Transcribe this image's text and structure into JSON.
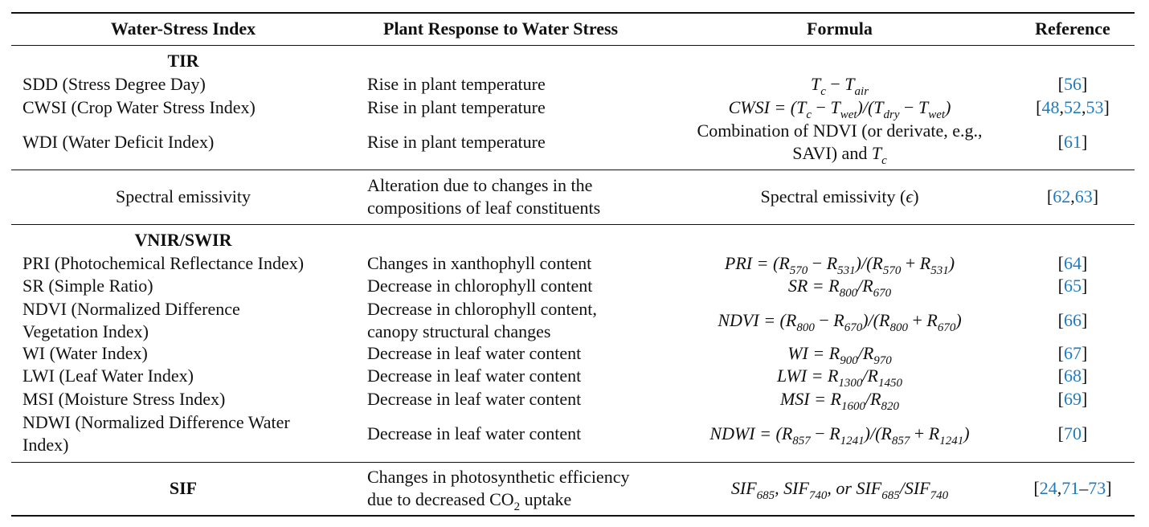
{
  "headers": {
    "index": "Water-Stress Index",
    "response": "Plant Response to Water Stress",
    "formula": "Formula",
    "reference": "Reference"
  },
  "sections": {
    "tir": "TIR",
    "vnir": "VNIR/SWIR",
    "sif": "SIF"
  },
  "rows": {
    "sdd": {
      "index": "SDD (Stress Degree Day)",
      "response": "Rise in plant temperature",
      "formula": {
        "a": "T",
        "a_sub": "c",
        "op": " − ",
        "b": "T",
        "b_sub": "air"
      },
      "refs": [
        "56"
      ]
    },
    "cwsi": {
      "index": "CWSI (Crop Water Stress Index)",
      "response": "Rise in plant temperature",
      "formula": {
        "lhs": "CWSI",
        "eq": " = (",
        "t": "T",
        "c": "c",
        "minus": " − ",
        "wet": "wet",
        "div": ")/(",
        "dry": "dry",
        "close": ")"
      },
      "refs": [
        "48",
        "52",
        "53"
      ]
    },
    "wdi": {
      "index": "WDI (Water Deficit Index)",
      "response": "Rise in plant temperature",
      "formula_line1": "Combination of NDVI (or derivate, e.g.,",
      "formula_line2": "SAVI) and ",
      "formula_t": "T",
      "formula_t_sub": "c",
      "refs": [
        "61"
      ]
    },
    "emissivity": {
      "index": "Spectral emissivity",
      "response_line1": "Alteration due to changes in the",
      "response_line2": "compositions of leaf constituents",
      "formula": "Spectral emissivity (",
      "formula_sym": "ϵ",
      "formula_close": ")",
      "refs": [
        "62",
        "63"
      ]
    },
    "pri": {
      "index": "PRI (Photochemical Reflectance Index)",
      "response": "Changes in xanthophyll content",
      "formula": {
        "lhs": "PRI",
        "a": "570",
        "b": "531"
      },
      "refs": [
        "64"
      ]
    },
    "sr": {
      "index": "SR (Simple Ratio)",
      "response": "Decrease in chlorophyll content",
      "formula": {
        "lhs": "SR",
        "a": "800",
        "b": "670"
      },
      "refs": [
        "65"
      ]
    },
    "ndvi": {
      "index_line1": "NDVI (Normalized Difference",
      "index_line2": "Vegetation Index)",
      "response_line1": "Decrease in chlorophyll content,",
      "response_line2": "canopy structural changes",
      "formula": {
        "lhs": "NDVI",
        "a": "800",
        "b": "670"
      },
      "refs": [
        "66"
      ]
    },
    "wi": {
      "index": "WI (Water Index)",
      "response": "Decrease in leaf water content",
      "formula": {
        "lhs": "WI",
        "a": "900",
        "b": "970"
      },
      "refs": [
        "67"
      ]
    },
    "lwi": {
      "index": "LWI (Leaf Water Index)",
      "response": "Decrease in leaf water content",
      "formula": {
        "lhs": "LWI",
        "a": "1300",
        "b": "1450"
      },
      "refs": [
        "68"
      ]
    },
    "msi": {
      "index": "MSI (Moisture Stress Index)",
      "response": "Decrease in leaf water content",
      "formula": {
        "lhs": "MSI",
        "a": "1600",
        "b": "820"
      },
      "refs": [
        "69"
      ]
    },
    "ndwi": {
      "index_line1": "NDWI (Normalized Difference Water",
      "index_line2": "Index)",
      "response": "Decrease in leaf water content",
      "formula": {
        "lhs": "NDWI",
        "a": "857",
        "b": "1241"
      },
      "refs": [
        "70"
      ]
    },
    "sif": {
      "response_line1": "Changes in photosynthetic efficiency",
      "response_line2a": "due to decreased CO",
      "response_line2_sub": "2",
      "response_line2b": " uptake",
      "formula": {
        "s": "SIF",
        "a": "685",
        "b": "740",
        "or": ", or "
      },
      "refs": [
        "24",
        "71",
        "73"
      ]
    }
  },
  "common": {
    "eq": " = ",
    "R": "R",
    "slash": "/",
    "minus": " − ",
    "plus": " + ",
    "open": "(",
    "close": ")",
    "comma": ",",
    "dash": "–",
    "lb": "[",
    "rb": "]"
  },
  "colors": {
    "link": "#1f7bc0",
    "text": "#111111",
    "rule": "#111111"
  }
}
